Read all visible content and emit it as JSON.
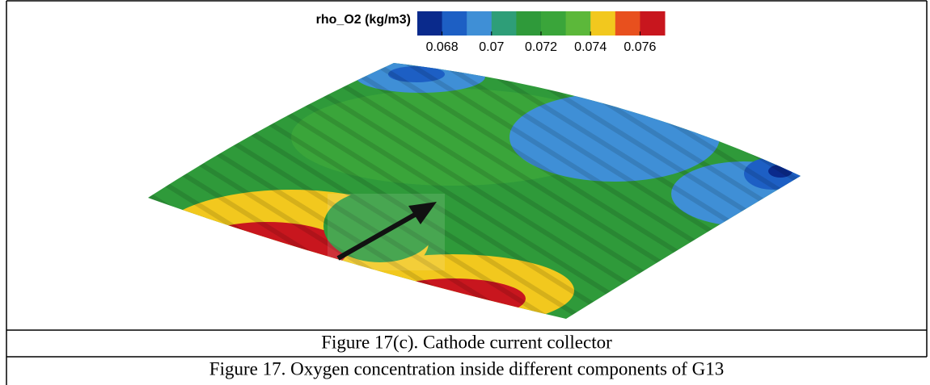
{
  "figure": {
    "colorbar": {
      "title": "rho_O2 (kg/m3)",
      "lim": [
        0.067,
        0.077
      ],
      "ticks": [
        0.068,
        0.07,
        0.072,
        0.074,
        0.076
      ],
      "colors": [
        "#0a2a8c",
        "#1d5fc4",
        "#3f8fd6",
        "#2e9e78",
        "#2f9a3a",
        "#3aa53a",
        "#5cb83a",
        "#f2c81e",
        "#e8501e",
        "#c8161e"
      ]
    }
  },
  "captions": {
    "subfigure": "Figure 17(c). Cathode current collector",
    "figure": "Figure 17. Oxygen concentration inside different components of G13"
  }
}
